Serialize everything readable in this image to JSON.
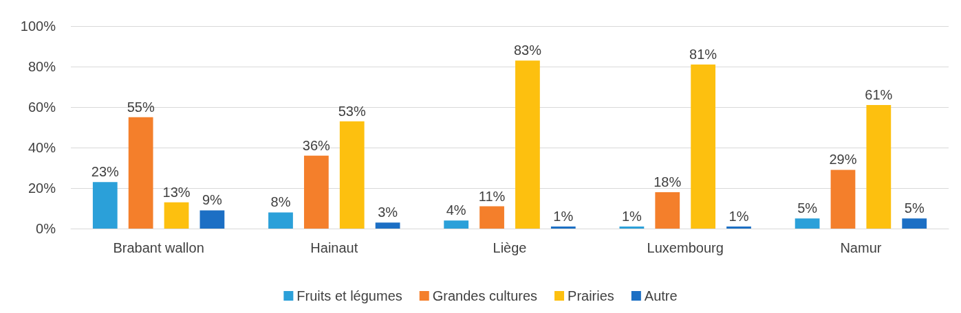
{
  "chart_data": {
    "type": "bar",
    "categories": [
      "Brabant wallon",
      "Hainaut",
      "Liège",
      "Luxembourg",
      "Namur"
    ],
    "series": [
      {
        "name": "Fruits et légumes",
        "color": "#2ba0d9",
        "values": [
          23,
          8,
          4,
          1,
          5
        ],
        "value_labels": [
          "23%",
          "8%",
          "4%",
          "1%",
          "5%"
        ]
      },
      {
        "name": "Grandes cultures",
        "color": "#f47f2b",
        "values": [
          55,
          36,
          11,
          18,
          29
        ],
        "value_labels": [
          "55%",
          "36%",
          "11%",
          "18%",
          "29%"
        ]
      },
      {
        "name": "Prairies",
        "color": "#fdc00f",
        "values": [
          13,
          53,
          83,
          81,
          61
        ],
        "value_labels": [
          "13%",
          "53%",
          "83%",
          "81%",
          "61%"
        ]
      },
      {
        "name": "Autre",
        "color": "#1c6fc4",
        "values": [
          9,
          3,
          1,
          1,
          5
        ],
        "value_labels": [
          "9%",
          "3%",
          "1%",
          "1%",
          "5%"
        ]
      }
    ],
    "ylim": [
      0,
      100
    ],
    "yticks": [
      {
        "value": 0,
        "label": "0%"
      },
      {
        "value": 20,
        "label": "20%"
      },
      {
        "value": 40,
        "label": "40%"
      },
      {
        "value": 60,
        "label": "60%"
      },
      {
        "value": 80,
        "label": "80%"
      },
      {
        "value": 100,
        "label": "100%"
      }
    ],
    "grid": "y",
    "legend": "bottom"
  }
}
